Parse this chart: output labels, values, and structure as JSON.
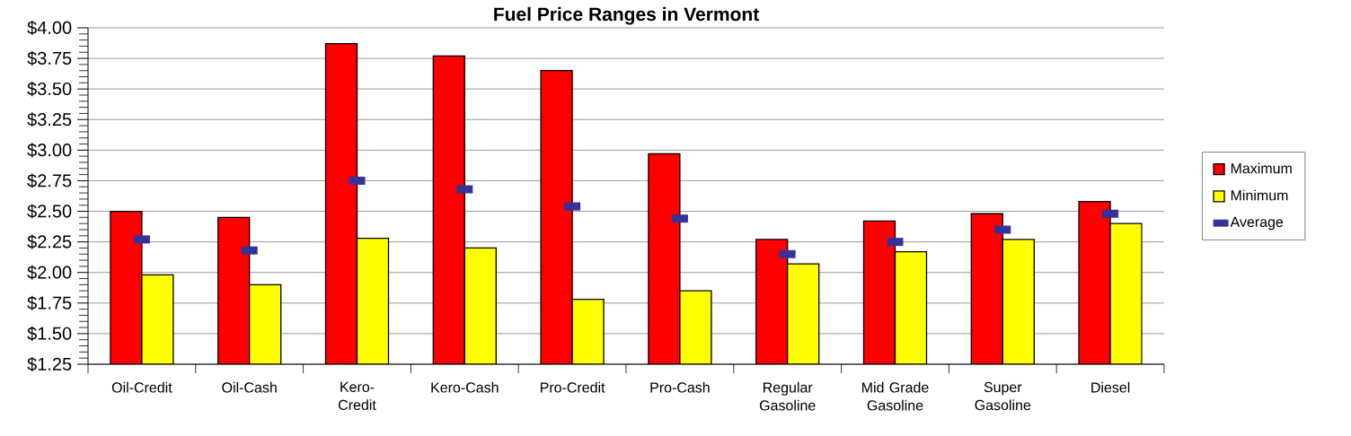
{
  "chart_data": {
    "type": "bar",
    "title": "Fuel Price Ranges in Vermont",
    "categories": [
      "Oil-Credit",
      "Oil-Cash",
      "Kero-Credit",
      "Kero-Cash",
      "Pro-Credit",
      "Pro-Cash",
      "Regular Gasoline",
      "Mid Grade Gasoline",
      "Super Gasoline",
      "Diesel"
    ],
    "series": [
      {
        "name": "Maximum",
        "color": "#ff0000",
        "values": [
          2.5,
          2.45,
          3.87,
          3.77,
          3.65,
          2.97,
          2.27,
          2.42,
          2.48,
          2.58
        ]
      },
      {
        "name": "Minimum",
        "color": "#ffff00",
        "values": [
          1.98,
          1.9,
          2.28,
          2.2,
          1.78,
          1.85,
          2.07,
          2.17,
          2.27,
          2.4
        ]
      },
      {
        "name": "Average",
        "type": "scatter",
        "color": "#333399",
        "x": [
          "Oil-Credit",
          "Oil-Cash",
          "Kero-Credit",
          "Kero-Cash",
          "Pro-Credit",
          "Pro-Cash",
          "Regular Gasoline",
          "Mid Grade Gasoline",
          "Super Gasoline",
          "Diesel"
        ],
        "values": [
          2.27,
          2.18,
          2.75,
          2.68,
          2.54,
          2.44,
          2.15,
          2.25,
          2.35,
          2.48
        ]
      }
    ],
    "ylim": [
      1.25,
      4.0
    ],
    "yticks": [
      {
        "value": 1.25,
        "label": "$1.25"
      },
      {
        "value": 1.5,
        "label": "$1.50"
      },
      {
        "value": 1.75,
        "label": "$1.75"
      },
      {
        "value": 2.0,
        "label": "$2.00"
      },
      {
        "value": 2.25,
        "label": "$2.25"
      },
      {
        "value": 2.5,
        "label": "$2.50"
      },
      {
        "value": 2.75,
        "label": "$2.75"
      },
      {
        "value": 3.0,
        "label": "$3.00"
      },
      {
        "value": 3.25,
        "label": "$3.25"
      },
      {
        "value": 3.5,
        "label": "$3.50"
      },
      {
        "value": 3.75,
        "label": "$3.75"
      },
      {
        "value": 4.0,
        "label": "$4.00"
      }
    ],
    "grid": "y",
    "legend": "right"
  }
}
